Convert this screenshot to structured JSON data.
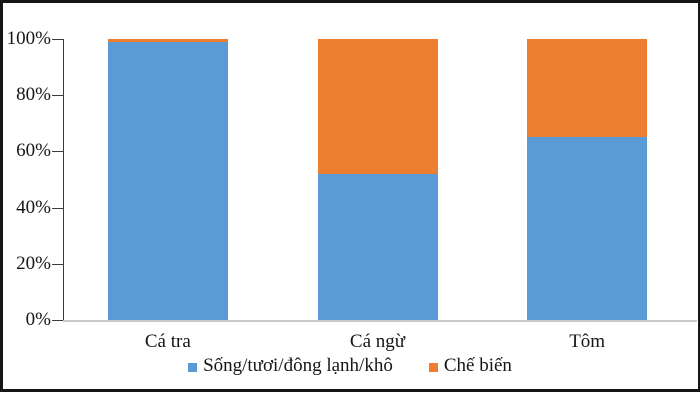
{
  "chart_data": {
    "type": "bar",
    "stacked": true,
    "percent_stacked": true,
    "title": "",
    "xlabel": "",
    "ylabel": "",
    "categories": [
      "Cá tra",
      "Cá ngừ",
      "Tôm"
    ],
    "series": [
      {
        "name": "Sống/tươi/đông lạnh/khô",
        "color": "#5B9BD5",
        "values": [
          99,
          52,
          65
        ]
      },
      {
        "name": "Chế biến",
        "color": "#ED7D31",
        "values": [
          1,
          48,
          35
        ]
      }
    ],
    "y_ticks": [
      "0%",
      "20%",
      "40%",
      "60%",
      "80%",
      "100%"
    ],
    "ylim": [
      0,
      100
    ],
    "grid": false,
    "legend_position": "bottom"
  },
  "accents": {
    "frame_border": "#161616",
    "axis_line": "#3b3b3b",
    "baseline": "#c9c9c9",
    "text": "#161616",
    "background": "#ffffff"
  }
}
